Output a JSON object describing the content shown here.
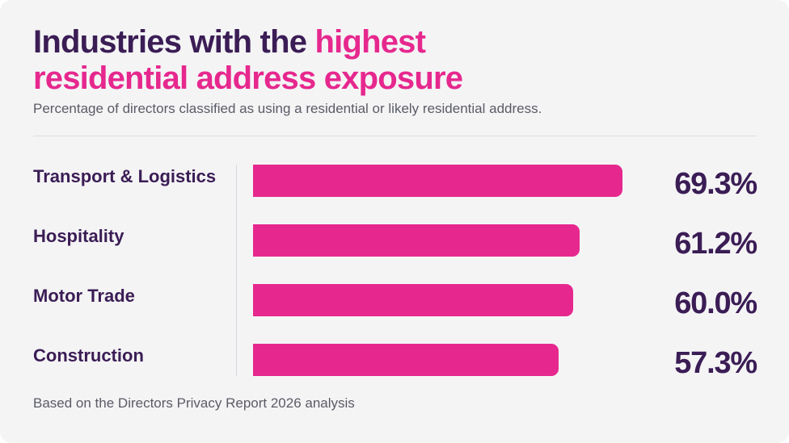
{
  "colors": {
    "bar": "#e6288e",
    "heading": "#3b1d55",
    "accent": "#e6288e"
  },
  "title": {
    "part1": "Industries with the ",
    "highlight_line1": "highest",
    "highlight_line2": "residential address exposure"
  },
  "subtitle": "Percentage of directors classified as using a residential or likely residential address.",
  "footer": "Based on the Directors Privacy Report 2026 analysis",
  "chart_data": {
    "type": "bar",
    "orientation": "horizontal",
    "title": "Industries with the highest residential address exposure",
    "categories": [
      "Transport & Logistics",
      "Hospitality",
      "Motor Trade",
      "Construction"
    ],
    "values": [
      69.3,
      61.2,
      60.0,
      57.3
    ],
    "value_labels": [
      "69.3%",
      "61.2%",
      "60.0%",
      "57.3%"
    ],
    "unit": "%",
    "grid": false,
    "legend": "none"
  }
}
